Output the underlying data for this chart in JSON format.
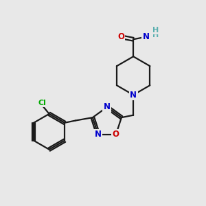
{
  "bg_color": "#e8e8e8",
  "bond_color": "#1a1a1a",
  "bond_width": 1.6,
  "atom_colors": {
    "O": "#cc0000",
    "N": "#0000cc",
    "Cl": "#00aa00",
    "C": "#1a1a1a",
    "H": "#5aafaf"
  },
  "font_size": 8.5,
  "font_size_small": 7.5
}
